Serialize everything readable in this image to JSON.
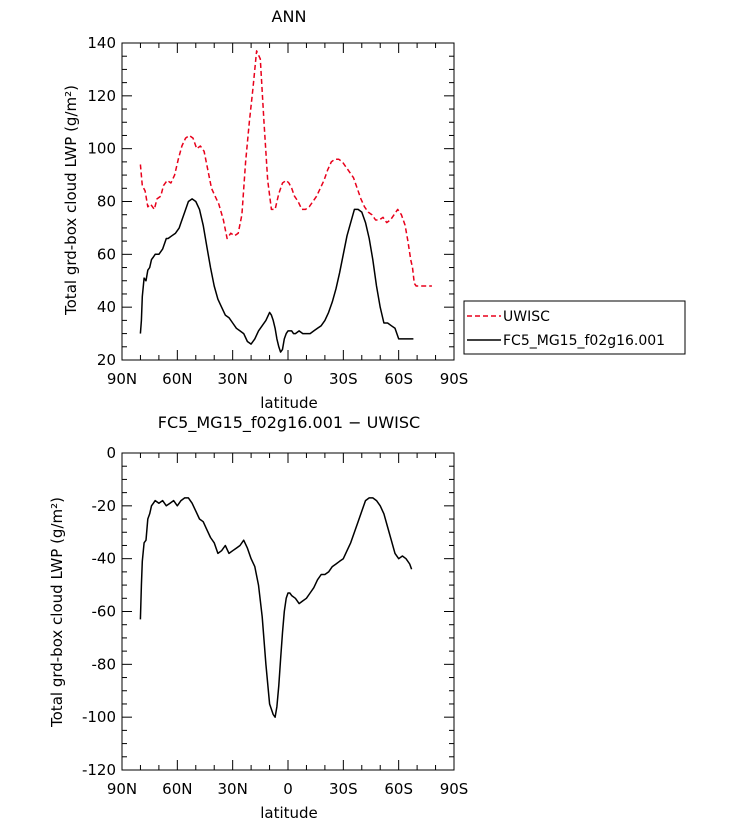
{
  "chart_data": [
    {
      "type": "line",
      "title": "ANN",
      "xlabel": "latitude",
      "ylabel": "Total grd-box cloud LWP (g/m²)",
      "xlim": [
        90,
        -90
      ],
      "ylim": [
        20,
        140
      ],
      "xticks": [
        90,
        60,
        30,
        0,
        -30,
        -60,
        -90
      ],
      "xtick_labels": [
        "90N",
        "60N",
        "30N",
        "0",
        "30S",
        "60S",
        "90S"
      ],
      "yticks": [
        20,
        40,
        60,
        80,
        100,
        120,
        140
      ],
      "legend_position": "right",
      "series": [
        {
          "name": "UWISC",
          "color": "#e8001b",
          "dash": "dashed",
          "x": [
            80,
            79,
            77.5,
            76,
            74.5,
            72.5,
            71,
            69,
            67.5,
            65.5,
            63.5,
            61.5,
            59.5,
            57.5,
            55.5,
            53.5,
            51.5,
            49.5,
            47.5,
            45.5,
            43.5,
            41.5,
            39.5,
            37.5,
            35,
            33,
            31,
            29,
            27,
            25,
            23,
            21,
            19,
            17,
            15,
            13,
            11,
            9,
            7,
            5,
            3,
            1,
            -0.5,
            -2,
            -3.5,
            -5.5,
            -7.5,
            -9.5,
            -11.5,
            -13.5,
            -15.5,
            -17.5,
            -19.5,
            -21.5,
            -23.5,
            -25.5,
            -27.5,
            -29.5,
            -31.5,
            -33.5,
            -35.5,
            -37.5,
            -39.5,
            -41.5,
            -43.5,
            -45.5,
            -47.5,
            -49.5,
            -51.5,
            -53.5,
            -55.5,
            -57.5,
            -59.5,
            -61.5,
            -63.5,
            -65,
            -66.5,
            -67.5,
            -68.5,
            -69.5,
            -70.5,
            -72,
            -73.5,
            -75,
            -76.5,
            -78
          ],
          "y": [
            94,
            86,
            84,
            78,
            79,
            77,
            81,
            82,
            86,
            88,
            87,
            90,
            96,
            101,
            104,
            105,
            104,
            100,
            101,
            99,
            92,
            85,
            82,
            79,
            73,
            66,
            68,
            67,
            68,
            75,
            95,
            110,
            123,
            137,
            134,
            110,
            88,
            77,
            77,
            83,
            87,
            88,
            87,
            85,
            82,
            80,
            77,
            77,
            78,
            80,
            82,
            85,
            88,
            92,
            95,
            96,
            96,
            95,
            93,
            91,
            89,
            85,
            81,
            78,
            76,
            75,
            73,
            73,
            74,
            72,
            73,
            75,
            77,
            75,
            71,
            65,
            58,
            55,
            49,
            48,
            48,
            48,
            48,
            48,
            48,
            48
          ]
        },
        {
          "name": "FC5_MG15_f02g16.001",
          "color": "#000000",
          "dash": "solid",
          "x": [
            80,
            79.5,
            79,
            78,
            77,
            76,
            75,
            74,
            73,
            72,
            70,
            68,
            66,
            65,
            63,
            61,
            59,
            58,
            56,
            54,
            52,
            50,
            48,
            46,
            44,
            42,
            40,
            38,
            36,
            34,
            32,
            30,
            28,
            26,
            24,
            22,
            20,
            18,
            16,
            14,
            12,
            10,
            9,
            8,
            7,
            6,
            5,
            4,
            3,
            2,
            1,
            0,
            -1,
            -2,
            -3,
            -4,
            -6,
            -8,
            -10,
            -12,
            -14,
            -16,
            -18,
            -20,
            -22,
            -24,
            -26,
            -28,
            -30,
            -32,
            -34,
            -36,
            -38,
            -40,
            -42,
            -44,
            -46,
            -48,
            -50,
            -52,
            -54,
            -56,
            -58,
            -60,
            -62,
            -64,
            -66,
            -68
          ],
          "y": [
            30,
            35,
            44,
            51,
            50,
            54,
            55,
            58,
            59,
            60,
            60,
            62,
            66,
            66,
            67,
            68,
            70,
            72,
            76,
            80,
            81,
            80,
            77,
            71,
            63,
            55,
            48,
            43,
            40,
            37,
            36,
            34,
            32,
            31,
            30,
            27,
            26,
            28,
            31,
            33,
            35,
            38,
            37,
            35,
            32,
            28,
            25,
            23,
            24,
            28,
            30,
            31,
            31,
            31,
            30,
            30,
            31,
            30,
            30,
            30,
            31,
            32,
            33,
            35,
            38,
            42,
            47,
            53,
            60,
            67,
            72,
            77,
            77,
            76,
            72,
            66,
            58,
            48,
            40,
            34,
            34,
            33,
            32,
            28,
            28,
            28,
            28,
            28
          ]
        }
      ]
    },
    {
      "type": "line",
      "title": "FC5_MG15_f02g16.001 − UWISC",
      "xlabel": "latitude",
      "ylabel": "Total grd-box cloud LWP (g/m²)",
      "xlim": [
        90,
        -90
      ],
      "ylim": [
        -120,
        0
      ],
      "xticks": [
        90,
        60,
        30,
        0,
        -30,
        -60,
        -90
      ],
      "xtick_labels": [
        "90N",
        "60N",
        "30N",
        "0",
        "30S",
        "60S",
        "90S"
      ],
      "yticks": [
        -120,
        -100,
        -80,
        -60,
        -40,
        -20,
        0
      ],
      "series": [
        {
          "color": "#000000",
          "dash": "solid",
          "x": [
            80,
            79.5,
            79,
            78,
            77,
            76,
            75,
            74,
            73,
            72,
            70,
            68,
            66,
            64,
            62,
            60,
            58,
            56,
            54,
            52,
            50,
            48,
            46,
            44,
            42,
            40,
            38,
            36,
            34,
            32,
            30,
            28,
            26,
            24,
            22,
            20,
            18,
            16,
            14,
            12,
            10,
            8,
            7,
            6,
            5,
            4,
            3,
            2,
            1,
            0,
            -1,
            -2,
            -4,
            -6,
            -8,
            -10,
            -12,
            -14,
            -16,
            -18,
            -20,
            -22,
            -24,
            -26,
            -28,
            -30,
            -32,
            -34,
            -36,
            -38,
            -40,
            -42,
            -44,
            -46,
            -48,
            -50,
            -52,
            -54,
            -56,
            -58,
            -60,
            -62,
            -64,
            -66,
            -67
          ],
          "y": [
            -63,
            -50,
            -41,
            -34,
            -33,
            -25,
            -23,
            -20,
            -19,
            -18,
            -19,
            -18,
            -20,
            -19,
            -18,
            -20,
            -18,
            -17,
            -17,
            -19,
            -22,
            -25,
            -26,
            -29,
            -32,
            -34,
            -38,
            -37,
            -35,
            -38,
            -37,
            -36,
            -35,
            -33,
            -36,
            -40,
            -43,
            -50,
            -62,
            -80,
            -95,
            -99,
            -100,
            -96,
            -88,
            -78,
            -68,
            -60,
            -55,
            -53,
            -53,
            -54,
            -55,
            -57,
            -56,
            -55,
            -53,
            -51,
            -48,
            -46,
            -46,
            -45,
            -43,
            -42,
            -41,
            -40,
            -37,
            -34,
            -30,
            -26,
            -22,
            -18,
            -17,
            -17,
            -18,
            -20,
            -23,
            -28,
            -33,
            -38,
            -40,
            -39,
            -40,
            -42,
            -44
          ]
        }
      ]
    }
  ]
}
